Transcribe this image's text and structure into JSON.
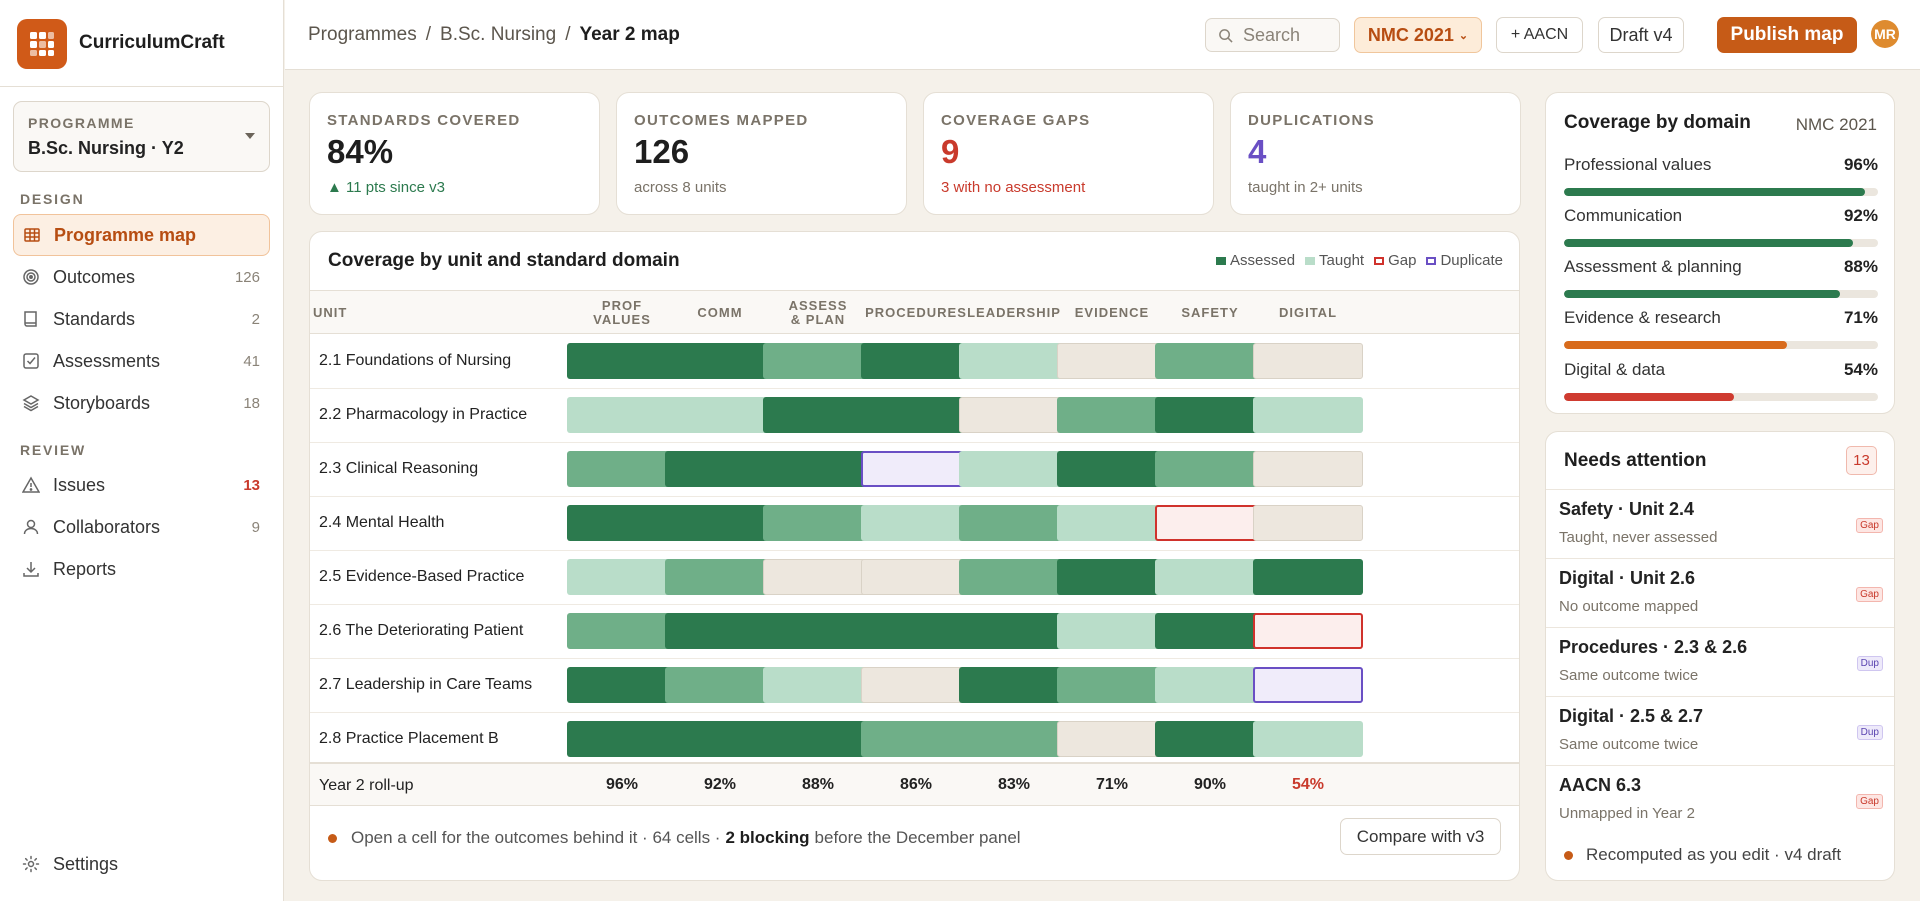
{
  "app": {
    "name": "CurriculumCraft"
  },
  "programme": {
    "label": "PROGRAMME",
    "value": "B.Sc. Nursing · Y2"
  },
  "nav": {
    "design_label": "DESIGN",
    "review_label": "REVIEW",
    "items": [
      {
        "label": "Programme map",
        "count": "",
        "icon": "grid-icon"
      },
      {
        "label": "Outcomes",
        "count": "126",
        "icon": "target-icon"
      },
      {
        "label": "Standards",
        "count": "2",
        "icon": "book-icon"
      },
      {
        "label": "Assessments",
        "count": "41",
        "icon": "checkbox-icon"
      },
      {
        "label": "Storyboards",
        "count": "18",
        "icon": "layers-icon"
      },
      {
        "label": "Issues",
        "count": "13",
        "icon": "warning-icon"
      },
      {
        "label": "Collaborators",
        "count": "9",
        "icon": "user-icon"
      },
      {
        "label": "Reports",
        "count": "",
        "icon": "download-icon"
      }
    ],
    "settings": "Settings"
  },
  "breadcrumb": {
    "items": [
      "Programmes",
      "B.Sc. Nursing",
      "Year 2 map"
    ],
    "sep": "/"
  },
  "toolbar": {
    "search_placeholder": "Search",
    "framework": "NMC 2021",
    "add": "+ AACN",
    "draft": "Draft v4",
    "publish": "Publish map",
    "avatar": "MR"
  },
  "kpis": [
    {
      "label": "STANDARDS COVERED",
      "value": "84%",
      "sub": "▲ 11 pts since v3",
      "color": "#1e1e1e",
      "sub_color": "#2c7a4e"
    },
    {
      "label": "OUTCOMES MAPPED",
      "value": "126",
      "sub": "across 8 units",
      "color": "#1e1e1e",
      "sub_color": "#7a7368"
    },
    {
      "label": "COVERAGE GAPS",
      "value": "9",
      "sub": "3 with no assessment",
      "color": "#c93a2c",
      "sub_color": "#c93a2c"
    },
    {
      "label": "DUPLICATIONS",
      "value": "4",
      "sub": "taught in 2+ units",
      "color": "#6a4fc4",
      "sub_color": "#7a7368"
    }
  ],
  "matrix": {
    "title": "Coverage by unit and standard domain",
    "legend": [
      {
        "label": "Assessed",
        "color": "#2c7a4e",
        "kind": "fill"
      },
      {
        "label": "Taught",
        "color": "#b9ddc9",
        "kind": "fill"
      },
      {
        "label": "Gap",
        "color": "#d0322c",
        "kind": "outline"
      },
      {
        "label": "Duplicate",
        "color": "#6a4fc4",
        "kind": "outline"
      }
    ],
    "unit_header": "UNIT",
    "columns": [
      "PROF\nVALUES",
      "COMM",
      "ASSESS\n& PLAN",
      "PROCEDURES",
      "LEADERSHIP",
      "EVIDENCE",
      "SAFETY",
      "DIGITAL"
    ],
    "rows": [
      {
        "unit": "2.1 Foundations of Nursing",
        "cells": [
          3,
          3,
          2,
          3,
          1,
          0,
          2,
          0
        ]
      },
      {
        "unit": "2.2 Pharmacology in Practice",
        "cells": [
          1,
          1,
          3,
          3,
          0,
          2,
          3,
          1
        ]
      },
      {
        "unit": "2.3 Clinical Reasoning",
        "cells": [
          2,
          3,
          3,
          "dup",
          1,
          3,
          2,
          0
        ]
      },
      {
        "unit": "2.4 Mental Health",
        "cells": [
          3,
          3,
          2,
          1,
          2,
          1,
          "gap",
          0
        ]
      },
      {
        "unit": "2.5 Evidence-Based Practice",
        "cells": [
          1,
          2,
          0,
          0,
          2,
          3,
          1,
          3
        ]
      },
      {
        "unit": "2.6 The Deteriorating Patient",
        "cells": [
          2,
          3,
          3,
          3,
          3,
          1,
          3,
          "gap"
        ]
      },
      {
        "unit": "2.7 Leadership in Care Teams",
        "cells": [
          3,
          2,
          1,
          0,
          3,
          2,
          1,
          "dup"
        ]
      },
      {
        "unit": "2.8 Practice Placement B",
        "cells": [
          3,
          3,
          3,
          2,
          2,
          0,
          3,
          1
        ]
      }
    ],
    "rollup": {
      "label": "Year 2 roll-up",
      "values": [
        "96%",
        "92%",
        "88%",
        "86%",
        "83%",
        "71%",
        "90%",
        "54%"
      ],
      "alert_index": 7
    },
    "footer": {
      "pre": "Open a cell for the outcomes behind it · 64 cells ·",
      "bold": "2 blocking",
      "post": "before the December panel"
    },
    "compare": "Compare with v3"
  },
  "coverage": {
    "title": "Coverage by domain",
    "subtitle": "NMC 2021",
    "items": [
      {
        "label": "Professional values",
        "pct": "96%",
        "value": 96,
        "color": "#2c7a4e"
      },
      {
        "label": "Communication",
        "pct": "92%",
        "value": 92,
        "color": "#2c7a4e"
      },
      {
        "label": "Assessment & planning",
        "pct": "88%",
        "value": 88,
        "color": "#2c7a4e"
      },
      {
        "label": "Evidence & research",
        "pct": "71%",
        "value": 71,
        "color": "#d86b1c"
      },
      {
        "label": "Digital & data",
        "pct": "54%",
        "value": 54,
        "color": "#cf3b30"
      }
    ]
  },
  "attention": {
    "title": "Needs attention",
    "count": "13",
    "items": [
      {
        "title": "Safety · Unit 2.4",
        "sub": "Taught, never assessed",
        "tag": "Gap",
        "kind": "gap"
      },
      {
        "title": "Digital · Unit 2.6",
        "sub": "No outcome mapped",
        "tag": "Gap",
        "kind": "gap"
      },
      {
        "title": "Procedures · 2.3 & 2.6",
        "sub": "Same outcome twice",
        "tag": "Dup",
        "kind": "dup"
      },
      {
        "title": "Digital · 2.5 & 2.7",
        "sub": "Same outcome twice",
        "tag": "Dup",
        "kind": "dup"
      },
      {
        "title": "AACN 6.3",
        "sub": "Unmapped in Year 2",
        "tag": "Gap",
        "kind": "gap"
      }
    ],
    "footer": "Recomputed as you edit · v4 draft"
  }
}
